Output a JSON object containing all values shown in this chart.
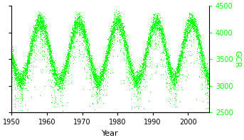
{
  "x_min": 1950,
  "x_max": 2006,
  "y_min": 2500,
  "y_max": 4500,
  "xlabel": "Year",
  "ylabel": "GCR",
  "xticks": [
    1950,
    1960,
    1970,
    1980,
    1990,
    2000
  ],
  "yticks": [
    2500,
    3000,
    3500,
    4000,
    4500
  ],
  "dot_color": "#00ff00",
  "bg_color": "#ffffff",
  "seed": 42,
  "solar_min_years": [
    1958,
    1969,
    1980,
    1991,
    2001
  ],
  "gcr_at_min": 3100,
  "gcr_at_max": 4200,
  "period": 11.0
}
